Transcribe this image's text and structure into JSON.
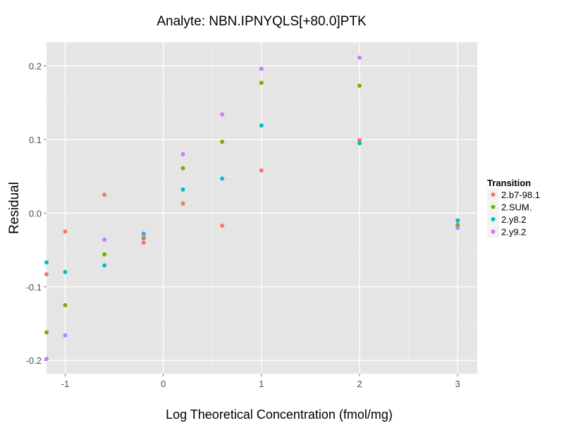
{
  "chart_data": {
    "type": "scatter",
    "title": "Analyte: NBN.IPNYQLS[+80.0]PTK",
    "xlabel": "Log Theoretical Concentration (fmol/mg)",
    "ylabel": "Residual",
    "xlim": [
      -1.19,
      3.2
    ],
    "ylim": [
      -0.218,
      0.232
    ],
    "xticks": [
      -1,
      0,
      1,
      2,
      3
    ],
    "xtick_labels": [
      "-1",
      "0",
      "1",
      "2",
      "3"
    ],
    "yticks": [
      -0.2,
      -0.1,
      0.0,
      0.1,
      0.2
    ],
    "ytick_labels": [
      "-0.2",
      "-0.1",
      "0.0",
      "0.1",
      "0.2"
    ],
    "grid": true,
    "legend": {
      "title": "Transition",
      "placement": "right"
    },
    "x": [
      -1.2,
      -1,
      -0.6,
      -0.2,
      0.2,
      0.6,
      1,
      2,
      3
    ],
    "series": [
      {
        "name": "2.b7-98.1",
        "color": "#F8766D",
        "values": [
          -0.083,
          -0.025,
          0.025,
          -0.04,
          0.013,
          -0.017,
          0.058,
          0.099,
          -0.017
        ]
      },
      {
        "name": "2.SUM.",
        "color": "#7CAE00",
        "values": [
          -0.162,
          -0.125,
          -0.056,
          -0.034,
          0.061,
          0.097,
          0.177,
          0.173,
          -0.016
        ]
      },
      {
        "name": "2.y8.2",
        "color": "#00BFC4",
        "values": [
          -0.067,
          -0.08,
          -0.071,
          -0.028,
          0.032,
          0.047,
          0.119,
          0.095,
          -0.01
        ]
      },
      {
        "name": "2.y9.2",
        "color": "#C77CFF",
        "values": [
          -0.198,
          -0.166,
          -0.036,
          -0.031,
          0.08,
          0.134,
          0.196,
          0.211,
          -0.02
        ]
      }
    ]
  }
}
